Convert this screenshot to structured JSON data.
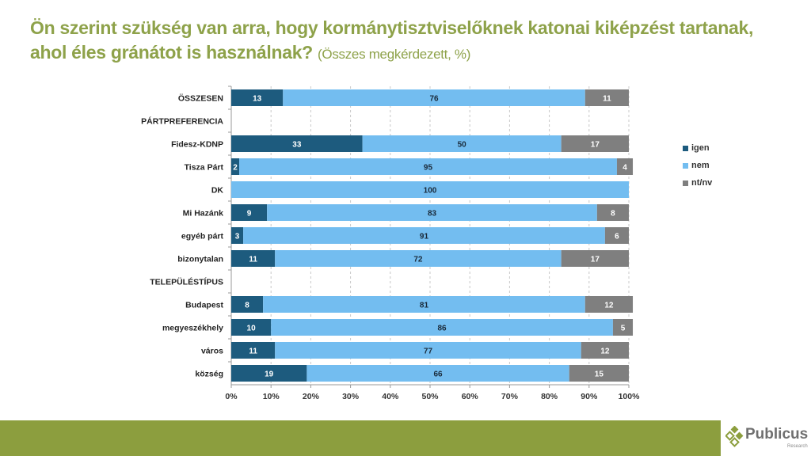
{
  "title": {
    "main": "Ön szerint szükség van arra, hogy kormánytisztviselőknek katonai kiképzést tartanak, ahol éles gránátot is használnak?",
    "subtitle": "(Összes megkérdezett, %)"
  },
  "colors": {
    "igen": "#1d5b7e",
    "nem": "#73bdf0",
    "nt_nv": "#7f7f7f",
    "title": "#8ea24a",
    "footer": "#8c9e3e"
  },
  "logo": {
    "name": "Publicus",
    "tagline": "Research"
  },
  "chart_data": {
    "type": "bar",
    "orientation": "horizontal",
    "stacked": true,
    "title": "Ön szerint szükség van arra, hogy kormánytisztviselőknek katonai kiképzést tartanak, ahol éles gránátot is használnak? (Összes megkérdezett, %)",
    "xlabel": "",
    "ylabel": "",
    "xlim": [
      0,
      100
    ],
    "x_ticks": [
      "0%",
      "10%",
      "20%",
      "30%",
      "40%",
      "50%",
      "60%",
      "70%",
      "80%",
      "90%",
      "100%"
    ],
    "grid": true,
    "legend_position": "right",
    "categories": [
      "ÖSSZESEN",
      "PÁRTPREFERENCIA",
      "Fidesz-KDNP",
      "Tisza Párt",
      "DK",
      "Mi Hazánk",
      "egyéb párt",
      "bizonytalan",
      "TELEPÜLÉSTÍPUS",
      "Budapest",
      "megyeszékhely",
      "város",
      "község"
    ],
    "series": [
      {
        "name": "igen",
        "values": [
          13,
          null,
          33,
          2,
          0,
          9,
          3,
          11,
          null,
          8,
          10,
          11,
          19
        ]
      },
      {
        "name": "nem",
        "values": [
          76,
          null,
          50,
          95,
          100,
          83,
          91,
          72,
          null,
          81,
          86,
          77,
          66
        ]
      },
      {
        "name": "nt/nv",
        "values": [
          11,
          null,
          17,
          4,
          0,
          8,
          6,
          17,
          null,
          12,
          5,
          12,
          15
        ]
      }
    ]
  }
}
